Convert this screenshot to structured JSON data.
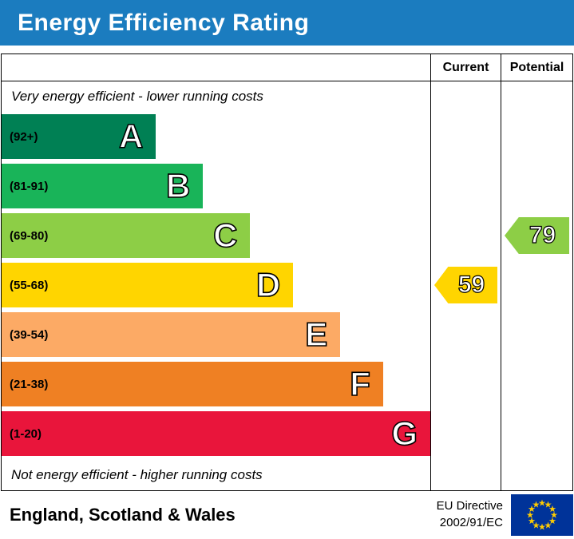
{
  "title_bar": {
    "title": "Energy Efficiency Rating"
  },
  "table": {
    "current_header": "Current",
    "potential_header": "Potential",
    "top_note": "Very energy efficient - lower running costs",
    "bottom_note": "Not energy efficient - higher running costs"
  },
  "footer": {
    "region": "England, Scotland & Wales",
    "directive": [
      "EU Directive",
      "2002/91/EC"
    ]
  },
  "colors": {
    "header_bg": "#1b7cbf",
    "current_arrow": "#ffd500",
    "potential_arrow": "#8dce46",
    "eu_flag_bg": "#003399",
    "eu_star": "#ffcc00"
  },
  "chart_data": {
    "type": "bar",
    "title": "Energy Efficiency Rating",
    "categories": [
      "A",
      "B",
      "C",
      "D",
      "E",
      "F",
      "G"
    ],
    "bands": [
      {
        "letter": "A",
        "range": "(92+)",
        "color": "#008054",
        "width_pct": 36
      },
      {
        "letter": "B",
        "range": "(81-91)",
        "color": "#19b459",
        "width_pct": 47
      },
      {
        "letter": "C",
        "range": "(69-80)",
        "color": "#8dce46",
        "width_pct": 58
      },
      {
        "letter": "D",
        "range": "(55-68)",
        "color": "#ffd500",
        "width_pct": 68
      },
      {
        "letter": "E",
        "range": "(39-54)",
        "color": "#fcaa65",
        "width_pct": 79
      },
      {
        "letter": "F",
        "range": "(21-38)",
        "color": "#ef8023",
        "width_pct": 89
      },
      {
        "letter": "G",
        "range": "(1-20)",
        "color": "#e9153b",
        "width_pct": 100
      }
    ],
    "current": {
      "value": 59,
      "band": "D",
      "band_index": 3
    },
    "potential": {
      "value": 79,
      "band": "C",
      "band_index": 2
    }
  }
}
